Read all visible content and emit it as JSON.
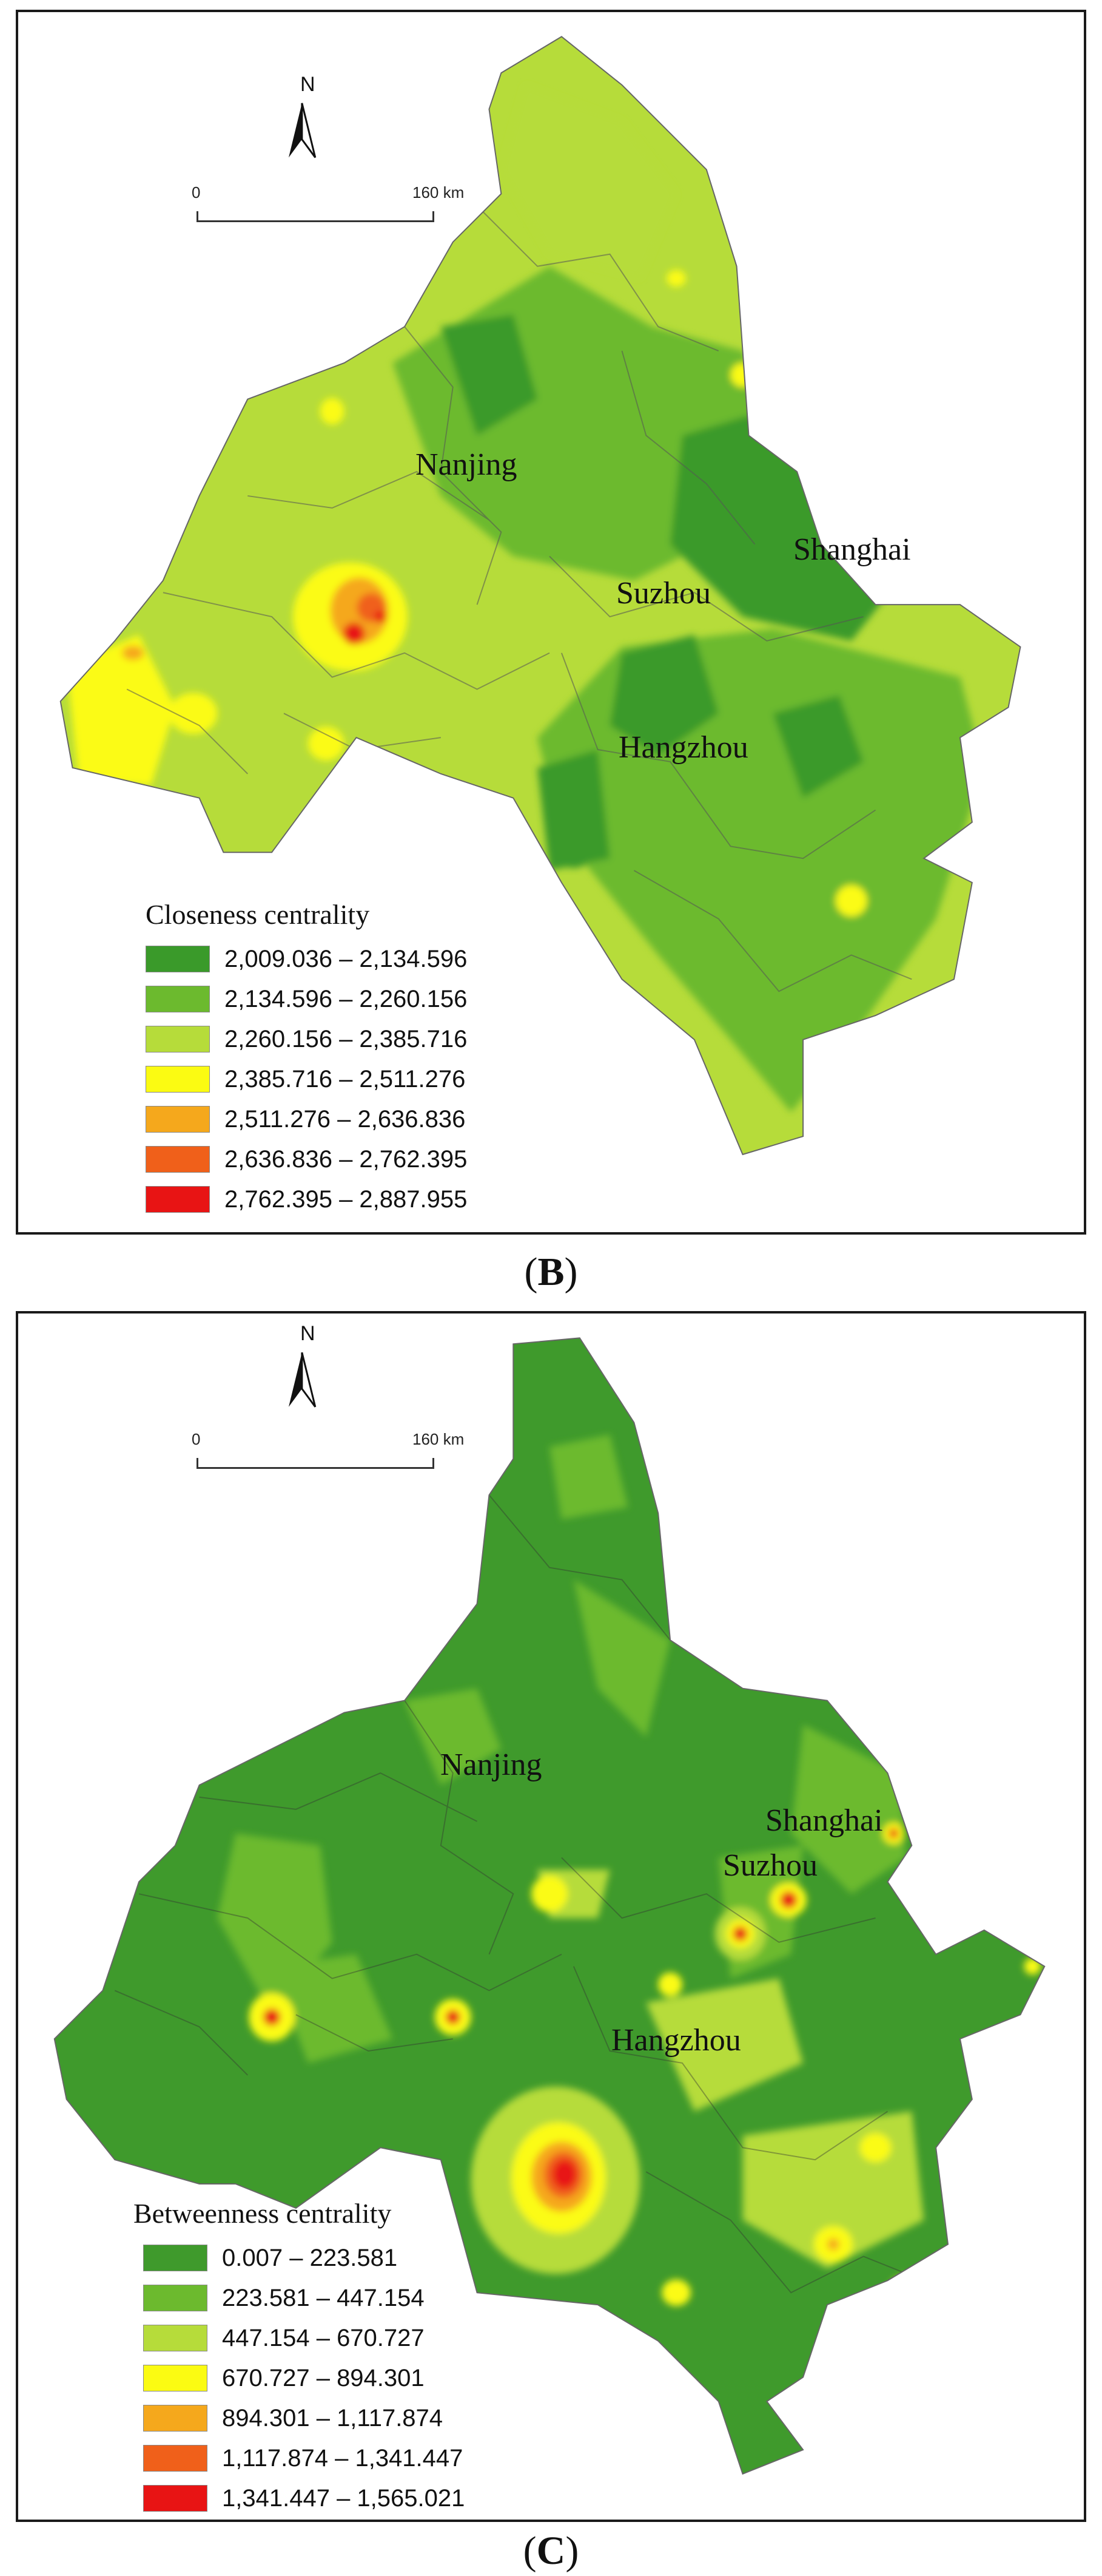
{
  "panels": {
    "b": {
      "caption_letter": "B",
      "north_label": "N",
      "scale_start": "0",
      "scale_end": "160 km",
      "cities": [
        "Nanjing",
        "Shanghai",
        "Suzhou",
        "Hangzhou"
      ],
      "legend_title": "Closeness centrality",
      "legend": [
        {
          "range": "2,009.036 – 2,134.596",
          "color": "#3a9a2a"
        },
        {
          "range": "2,134.596 – 2,260.156",
          "color": "#6cba2e"
        },
        {
          "range": "2,260.156 – 2,385.716",
          "color": "#b6dc3a"
        },
        {
          "range": "2,385.716 – 2,511.276",
          "color": "#fbfb12"
        },
        {
          "range": "2,511.276 – 2,636.836",
          "color": "#f5a81c"
        },
        {
          "range": "2,636.836 – 2,762.395",
          "color": "#f0601a"
        },
        {
          "range": "2,762.395 – 2,887.955",
          "color": "#e81414"
        }
      ]
    },
    "c": {
      "caption_letter": "C",
      "north_label": "N",
      "scale_start": "0",
      "scale_end": "160 km",
      "cities": [
        "Nanjing",
        "Shanghai",
        "Suzhou",
        "Hangzhou"
      ],
      "legend_title": "Betweenness centrality",
      "legend": [
        {
          "range": "0.007 – 223.581",
          "color": "#3f9a2c"
        },
        {
          "range": "223.581 – 447.154",
          "color": "#6cba2e"
        },
        {
          "range": "447.154 – 670.727",
          "color": "#b6dc3a"
        },
        {
          "range": "670.727 – 894.301",
          "color": "#fbfb12"
        },
        {
          "range": "894.301 – 1,117.874",
          "color": "#f5a81c"
        },
        {
          "range": "1,117.874 – 1,341.447",
          "color": "#f0601a"
        },
        {
          "range": "1,341.447 – 1,565.021",
          "color": "#e81414"
        }
      ]
    }
  }
}
